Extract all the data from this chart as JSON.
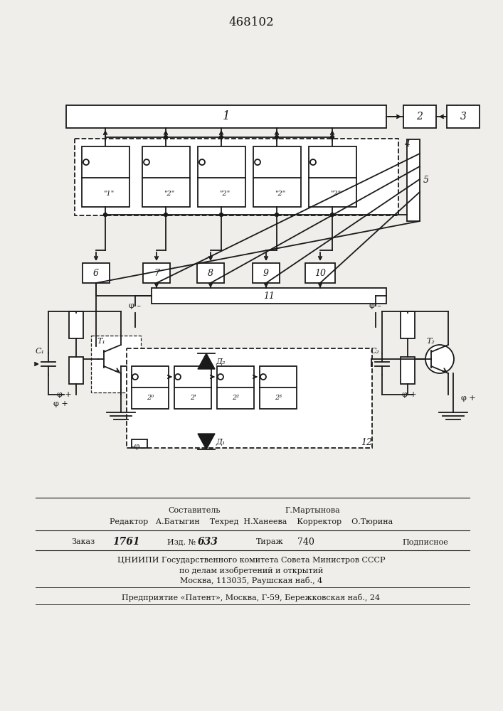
{
  "title": "468102",
  "bg_color": "#f0eeea",
  "lc": "#1a1a1a",
  "fig_w": 7.07,
  "fig_h": 10.0,
  "dpi": 100,
  "footer": {
    "составитель_label": "Составитель",
    "составитель_value": "Г.Мартынова",
    "редактор": "Редактор",
    "батыгин": "А.Батыгин",
    "техред": "Техред",
    "ханеева": "Н.Ханеева",
    "корректор": "Корректор",
    "тюрина": "О.Тюрина",
    "заказ": "Заказ",
    "заказ_num": "1761",
    "изд": "Изд. №",
    "изд_num": "633",
    "тираж": "Тираж",
    "тираж_num": "740",
    "подписное": "Подписное",
    "цниипи": "ЦНИИПИ Государственного комитета Совета Министров СССР",
    "по_делам": "по делам изобретений и открытий",
    "москва": "Москва, 113035, Раушская наб., 4",
    "предприятие": "Предприятие «Патент», Москва, Г-59, Бережковская наб., 24"
  }
}
